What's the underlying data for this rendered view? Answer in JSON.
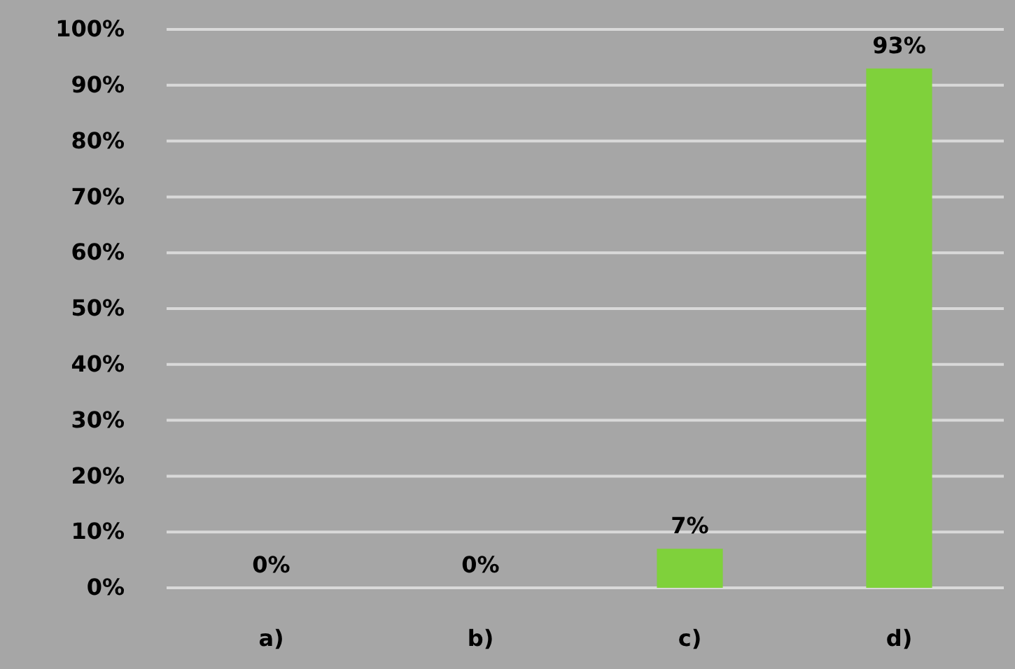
{
  "chart_data": {
    "type": "bar",
    "categories": [
      "a)",
      "b)",
      "c)",
      "d)"
    ],
    "values": [
      0,
      0,
      7,
      93
    ],
    "value_labels": [
      "0%",
      "0%",
      "7%",
      "93%"
    ],
    "color": "#7fd13b",
    "ylim": [
      0,
      100
    ],
    "yticks": [
      {
        "value": 0,
        "label": "0%"
      },
      {
        "value": 10,
        "label": "10%"
      },
      {
        "value": 20,
        "label": "20%"
      },
      {
        "value": 30,
        "label": "30%"
      },
      {
        "value": 40,
        "label": "40%"
      },
      {
        "value": 50,
        "label": "50%"
      },
      {
        "value": 60,
        "label": "60%"
      },
      {
        "value": 70,
        "label": "70%"
      },
      {
        "value": 80,
        "label": "80%"
      },
      {
        "value": 90,
        "label": "90%"
      },
      {
        "value": 100,
        "label": "100%"
      }
    ],
    "grid": "y"
  }
}
